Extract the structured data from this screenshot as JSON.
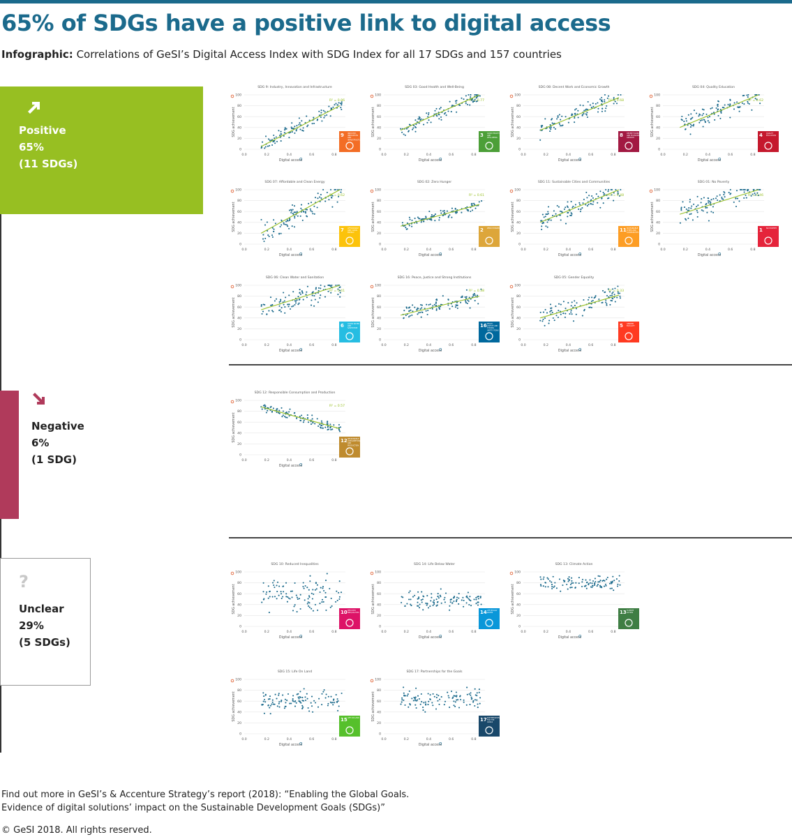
{
  "title": "65% of SDGs have a positive link to digital access",
  "subtitle": {
    "lead": "Infographic:",
    "text": "Correlations of GeSI’s Digital Access Index with SDG Index for all 17 SDGs and 157 countries"
  },
  "categories": {
    "positive": {
      "name": "Positive",
      "percent": "65%",
      "count": "(11 SDGs)",
      "color": "#97bf22"
    },
    "negative": {
      "name": "Negative",
      "percent": "6%",
      "count": "(1 SDG)",
      "color": "#b03a5b"
    },
    "unclear": {
      "name": "Unclear",
      "percent": "29%",
      "count": "(5 SDGs)",
      "icon": "?"
    }
  },
  "footer": {
    "line1": "Find out more in GeSI’s & Accenture Strategy’s report (2018): “Enabling the Global Goals.",
    "line2": "Evidence of digital solutions’ impact on the Sustainable Development Goals (SDGs)”",
    "copyright": "© GeSI 2018. All rights reserved."
  },
  "chart_data": [
    {
      "type": "scatter",
      "group": "positive",
      "title": "SDG 9: Industry, Innovation and Infrastructure",
      "r2": "R² = 0.86",
      "trend": [
        0.15,
        5,
        0.85,
        80
      ],
      "seed": 9,
      "spread": 9,
      "badge": {
        "num": "9",
        "text": "INDUSTRY, INNOVATION AND INFRASTRUCTURE",
        "color": "#f36d25"
      },
      "xlabel": "Digital access",
      "ylabel": "SDG achievement",
      "xticks": [
        "0.0",
        "0.2",
        "0.4",
        "0.6",
        "0.8"
      ],
      "yticks": [
        "0",
        "20",
        "40",
        "60",
        "80",
        "100"
      ]
    },
    {
      "type": "scatter",
      "group": "positive",
      "title": "SDG 03: Good Health and Well-Being",
      "r2": "R² = 0.77",
      "trend": [
        0.15,
        35,
        0.85,
        100
      ],
      "seed": 3,
      "spread": 10,
      "badge": {
        "num": "3",
        "text": "GOOD HEALTH AND WELL-BEING",
        "color": "#4c9f38"
      },
      "xlabel": "Digital access",
      "ylabel": "SDG achievement",
      "xticks": [
        "0.0",
        "0.2",
        "0.4",
        "0.6",
        "0.8"
      ],
      "yticks": [
        "0",
        "20",
        "40",
        "60",
        "80",
        "100"
      ]
    },
    {
      "type": "scatter",
      "group": "positive",
      "title": "SDG 08: Decent Work and Economic Growth",
      "r2": "R² = 0.68",
      "trend": [
        0.15,
        35,
        0.85,
        95
      ],
      "seed": 8,
      "spread": 11,
      "badge": {
        "num": "8",
        "text": "DECENT WORK AND ECONOMIC GROWTH",
        "color": "#a21942"
      },
      "xlabel": "Digital access",
      "ylabel": "SDG achievement",
      "xticks": [
        "0.0",
        "0.2",
        "0.4",
        "0.6",
        "0.8"
      ],
      "yticks": [
        "0",
        "20",
        "40",
        "60",
        "80",
        "100"
      ]
    },
    {
      "type": "scatter",
      "group": "positive",
      "title": "SDG 04: Quality Education",
      "r2": "R² = 0.62",
      "trend": [
        0.15,
        40,
        0.85,
        100
      ],
      "seed": 4,
      "spread": 14,
      "badge": {
        "num": "4",
        "text": "QUALITY EDUCATION",
        "color": "#c5192d"
      },
      "xlabel": "Digital access",
      "ylabel": "SDG achievement",
      "xticks": [
        "0.0",
        "0.2",
        "0.4",
        "0.6",
        "0.8"
      ],
      "yticks": [
        "0",
        "20",
        "40",
        "60",
        "80",
        "100"
      ]
    },
    {
      "type": "scatter",
      "group": "positive",
      "title": "SDG 07: Affordable and Clean Energy",
      "r2": "R² = 0.62",
      "trend": [
        0.15,
        20,
        0.85,
        100
      ],
      "seed": 7,
      "spread": 16,
      "badge": {
        "num": "7",
        "text": "AFFORDABLE AND CLEAN ENERGY",
        "color": "#fcc30b"
      },
      "xlabel": "Digital access",
      "ylabel": "SDG achievement",
      "xticks": [
        "0.0",
        "0.2",
        "0.4",
        "0.6",
        "0.8"
      ],
      "yticks": [
        "0",
        "20",
        "40",
        "60",
        "80",
        "100"
      ]
    },
    {
      "type": "scatter",
      "group": "positive",
      "title": "SDG 02: Zero Hunger",
      "r2": "R² = 0.61",
      "trend": [
        0.15,
        33,
        0.85,
        73
      ],
      "seed": 2,
      "spread": 7,
      "badge": {
        "num": "2",
        "text": "ZERO HUNGER",
        "color": "#dda63a"
      },
      "xlabel": "Digital access",
      "ylabel": "SDG achievement",
      "xticks": [
        "0.0",
        "0.2",
        "0.4",
        "0.6",
        "0.8"
      ],
      "yticks": [
        "0",
        "20",
        "40",
        "60",
        "80",
        "100"
      ]
    },
    {
      "type": "scatter",
      "group": "positive",
      "title": "SDG 11: Sustainable Cities and Communities",
      "r2": "R² = 0.48",
      "trend": [
        0.15,
        40,
        0.85,
        100
      ],
      "seed": 11,
      "spread": 14,
      "badge": {
        "num": "11",
        "text": "SUSTAINABLE CITIES AND COMMUNITIES",
        "color": "#fd9d24"
      },
      "xlabel": "Digital access",
      "ylabel": "SDG achievement",
      "xticks": [
        "0.0",
        "0.2",
        "0.4",
        "0.6",
        "0.8"
      ],
      "yticks": [
        "0",
        "20",
        "40",
        "60",
        "80",
        "100"
      ]
    },
    {
      "type": "scatter",
      "group": "positive",
      "title": "SDG 01: No Poverty",
      "r2": "R² = 0.46",
      "trend": [
        0.15,
        55,
        0.85,
        105
      ],
      "seed": 1,
      "spread": 18,
      "badge": {
        "num": "1",
        "text": "NO POVERTY",
        "color": "#e5243b"
      },
      "xlabel": "Digital access",
      "ylabel": "SDG achievement",
      "xticks": [
        "0.0",
        "0.2",
        "0.4",
        "0.6",
        "0.8"
      ],
      "yticks": [
        "0",
        "20",
        "40",
        "60",
        "80",
        "100"
      ]
    },
    {
      "type": "scatter",
      "group": "positive",
      "title": "SDG 06: Clean Water and Sanitation",
      "r2": "R² = 0.41",
      "trend": [
        0.15,
        55,
        0.85,
        100
      ],
      "seed": 6,
      "spread": 14,
      "badge": {
        "num": "6",
        "text": "CLEAN WATER AND SANITATION",
        "color": "#26bde2"
      },
      "xlabel": "Digital access",
      "ylabel": "SDG achievement",
      "xticks": [
        "0.0",
        "0.2",
        "0.4",
        "0.6",
        "0.8"
      ],
      "yticks": [
        "0",
        "20",
        "40",
        "60",
        "80",
        "100"
      ]
    },
    {
      "type": "scatter",
      "group": "positive",
      "title": "SDG 16: Peace, Justice and Strong Institutions",
      "r2": "R² = 0.38",
      "trend": [
        0.15,
        45,
        0.85,
        80
      ],
      "seed": 16,
      "spread": 10,
      "badge": {
        "num": "16",
        "text": "PEACE, JUSTICE AND STRONG INSTITUTIONS",
        "color": "#00689d"
      },
      "xlabel": "Digital access",
      "ylabel": "SDG achievement",
      "xticks": [
        "0.0",
        "0.2",
        "0.4",
        "0.6",
        "0.8"
      ],
      "yticks": [
        "0",
        "20",
        "40",
        "60",
        "80",
        "100"
      ]
    },
    {
      "type": "scatter",
      "group": "positive",
      "title": "SDG 05: Gender Equality",
      "r2": "R² = 0.33",
      "trend": [
        0.15,
        40,
        0.85,
        82
      ],
      "seed": 5,
      "spread": 13,
      "badge": {
        "num": "5",
        "text": "GENDER EQUALITY",
        "color": "#ff3a21"
      },
      "xlabel": "Digital access",
      "ylabel": "SDG achievement",
      "xticks": [
        "0.0",
        "0.2",
        "0.4",
        "0.6",
        "0.8"
      ],
      "yticks": [
        "0",
        "20",
        "40",
        "60",
        "80",
        "100"
      ]
    },
    {
      "type": "scatter",
      "group": "negative",
      "title": "SDG 12: Responsible Consumption and Production",
      "r2": "R² = 0.57",
      "trend": [
        0.15,
        88,
        0.85,
        48
      ],
      "seed": 12,
      "spread": 7,
      "badge": {
        "num": "12",
        "text": "RESPONSIBLE CONSUMPTION AND PRODUCTION",
        "color": "#bf8b2e"
      },
      "xlabel": "Digital access",
      "ylabel": "SDG achievement",
      "xticks": [
        "0.0",
        "0.2",
        "0.4",
        "0.6",
        "0.8"
      ],
      "yticks": [
        "0",
        "20",
        "40",
        "60",
        "80",
        "100"
      ]
    },
    {
      "type": "scatter",
      "group": "unclear",
      "title": "SDG 10: Reduced Inequalities",
      "r2": "",
      "trend": null,
      "center": 58,
      "seed": 10,
      "spread": 22,
      "badge": {
        "num": "10",
        "text": "REDUCED INEQUALITIES",
        "color": "#dd1367"
      },
      "xlabel": "Digital access",
      "ylabel": "SDG achievement",
      "xticks": [
        "0.0",
        "0.2",
        "0.4",
        "0.6",
        "0.8"
      ],
      "yticks": [
        "0",
        "20",
        "40",
        "60",
        "80",
        "100"
      ]
    },
    {
      "type": "scatter",
      "group": "unclear",
      "title": "SDG 14: Life Below Water",
      "r2": "",
      "trend": null,
      "center": 48,
      "seed": 14,
      "spread": 12,
      "badge": {
        "num": "14",
        "text": "LIFE BELOW WATER",
        "color": "#0a97d9"
      },
      "xlabel": "Digital access",
      "ylabel": "SDG achievement",
      "xticks": [
        "0.0",
        "0.2",
        "0.4",
        "0.6",
        "0.8"
      ],
      "yticks": [
        "0",
        "20",
        "40",
        "60",
        "80",
        "100"
      ]
    },
    {
      "type": "scatter",
      "group": "unclear",
      "title": "SDG 13: Climate Action",
      "r2": "",
      "trend": null,
      "center": 80,
      "seed": 13,
      "spread": 10,
      "badge": {
        "num": "13",
        "text": "CLIMATE ACTION",
        "color": "#3f7e44"
      },
      "xlabel": "Digital access",
      "ylabel": "SDG achievement",
      "xticks": [
        "0.0",
        "0.2",
        "0.4",
        "0.6",
        "0.8"
      ],
      "yticks": [
        "0",
        "20",
        "40",
        "60",
        "80",
        "100"
      ]
    },
    {
      "type": "scatter",
      "group": "unclear",
      "title": "SDG 15: Life On Land",
      "r2": "",
      "trend": null,
      "center": 60,
      "seed": 15,
      "spread": 14,
      "badge": {
        "num": "15",
        "text": "LIFE ON LAND",
        "color": "#56c02b"
      },
      "xlabel": "Digital access",
      "ylabel": "SDG achievement",
      "xticks": [
        "0.0",
        "0.2",
        "0.4",
        "0.6",
        "0.8"
      ],
      "yticks": [
        "0",
        "20",
        "40",
        "60",
        "80",
        "100"
      ]
    },
    {
      "type": "scatter",
      "group": "unclear",
      "title": "SDG 17: Partnerships for the Goals",
      "r2": "",
      "trend": null,
      "center": 65,
      "seed": 17,
      "spread": 15,
      "badge": {
        "num": "17",
        "text": "PARTNERSHIPS FOR THE GOALS",
        "color": "#19486a"
      },
      "xlabel": "Digital access",
      "ylabel": "SDG achievement",
      "xticks": [
        "0.0",
        "0.2",
        "0.4",
        "0.6",
        "0.8"
      ],
      "yticks": [
        "0",
        "20",
        "40",
        "60",
        "80",
        "100"
      ]
    }
  ]
}
